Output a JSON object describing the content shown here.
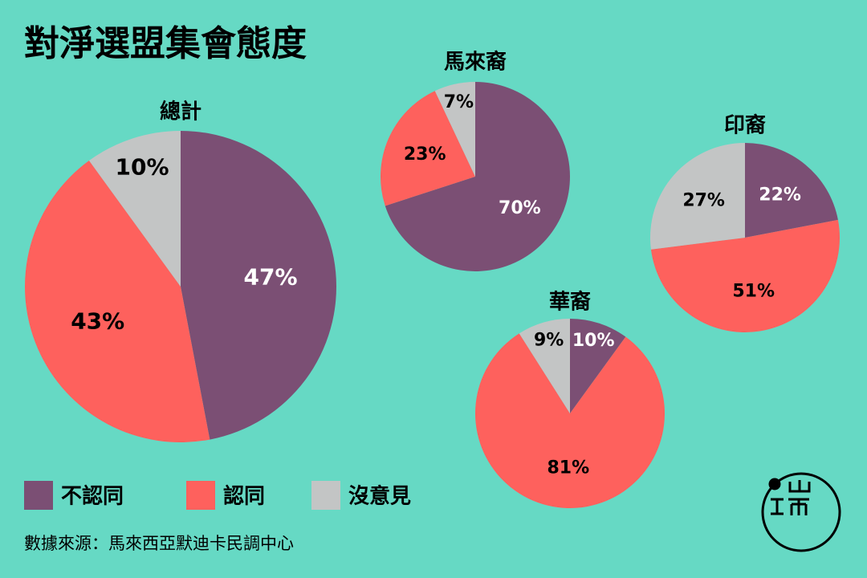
{
  "title": "對淨選盟集會態度",
  "legend": [
    {
      "name": "不認同",
      "color": "#7b4f74"
    },
    {
      "name": "認同",
      "color": "#fe615d"
    },
    {
      "name": "沒意見",
      "color": "#c3c5c5"
    }
  ],
  "source": "數據來源：馬來西亞默迪卡民調中心",
  "chart_data": [
    {
      "type": "pie",
      "title": "總計",
      "values": [
        47,
        43,
        10
      ],
      "value_labels": [
        "47%",
        "43%",
        "10%"
      ]
    },
    {
      "type": "pie",
      "title": "馬來裔",
      "values": [
        70,
        23,
        7
      ],
      "value_labels": [
        "70%",
        "23%",
        "7%"
      ]
    },
    {
      "type": "pie",
      "title": "華裔",
      "values": [
        10,
        81,
        9
      ],
      "value_labels": [
        "10%",
        "81%",
        "9%"
      ]
    },
    {
      "type": "pie",
      "title": "印裔",
      "values": [
        22,
        51,
        27
      ],
      "value_labels": [
        "22%",
        "51%",
        "27%"
      ]
    }
  ]
}
